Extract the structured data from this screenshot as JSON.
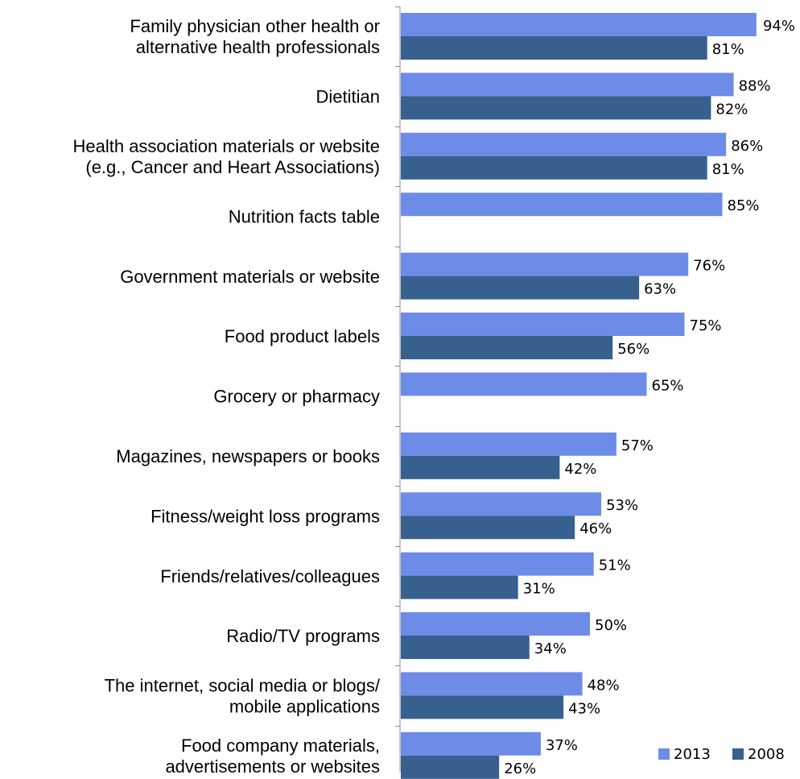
{
  "chart_data": {
    "type": "bar",
    "orientation": "horizontal",
    "categories": [
      [
        "Family physician other health or",
        "alternative health professionals"
      ],
      [
        "Dietitian"
      ],
      [
        "Health association materials or website",
        "(e.g., Cancer and Heart Associations)"
      ],
      [
        "Nutrition facts table"
      ],
      [
        "Government materials or website"
      ],
      [
        "Food product labels"
      ],
      [
        "Grocery or pharmacy"
      ],
      [
        "Magazines, newspapers or books"
      ],
      [
        "Fitness/weight loss programs"
      ],
      [
        "Friends/relatives/colleagues"
      ],
      [
        "Radio/TV programs"
      ],
      [
        "The internet, social media or blogs/",
        "mobile applications"
      ],
      [
        "Food company materials,",
        "advertisements or websites"
      ]
    ],
    "series": [
      {
        "name": "2013",
        "color": "#6d8ce8",
        "values": [
          94,
          88,
          86,
          85,
          76,
          75,
          65,
          57,
          53,
          51,
          50,
          48,
          37
        ],
        "labels": [
          "94%",
          "88%",
          "86%",
          "85%",
          "76%",
          "75%",
          "65%",
          "57%",
          "53%",
          "51%",
          "50%",
          "48%",
          "37%"
        ]
      },
      {
        "name": "2008",
        "color": "#37608f",
        "values": [
          81,
          82,
          81,
          null,
          63,
          56,
          null,
          42,
          46,
          31,
          34,
          43,
          26
        ],
        "labels": [
          "81%",
          "82%",
          "81%",
          "",
          "63%",
          "56%",
          "",
          "42%",
          "46%",
          "31%",
          "34%",
          "43%",
          "26%"
        ]
      }
    ],
    "xlim": [
      0,
      100
    ],
    "unit": "%",
    "legend": "bottom-right",
    "grid": false,
    "title": "",
    "xlabel": "",
    "ylabel": ""
  }
}
